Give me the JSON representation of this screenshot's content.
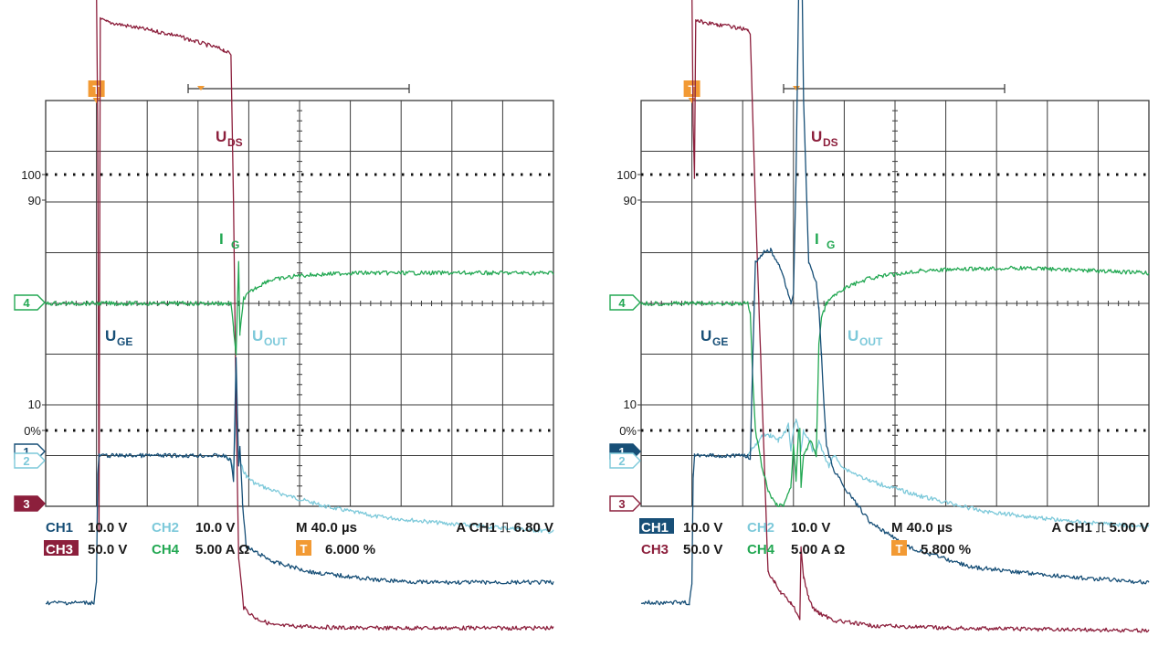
{
  "colors": {
    "ch1": "#174f77",
    "ch2": "#7dc9da",
    "ch3": "#8c1f3c",
    "ch4": "#23a853",
    "trigger": "#f29a34",
    "grid": "#3a3a3a",
    "text": "#1a1a1a"
  },
  "icons": {
    "trigger": "T"
  },
  "chart_data": [
    {
      "type": "line",
      "panel": "left",
      "x_unit": "µs",
      "xlim": [
        -40,
        360
      ],
      "trigger_x": 0,
      "ticks": {
        "y100": "100",
        "y90": "90",
        "y10": "10",
        "y0": "0%"
      },
      "labels": {
        "uds": "U",
        "uds_sub": "DS",
        "ig": "I",
        "ig_sub": "G",
        "uge": "U",
        "uge_sub": "GE",
        "uout": "U",
        "uout_sub": "OUT"
      },
      "markers": {
        "ch1": "1",
        "ch2": "2",
        "ch3": "3",
        "ch4": "4"
      },
      "readout": {
        "ch1": "CH1",
        "ch1_scale": "10.0 V",
        "ch2": "CH2",
        "ch2_scale": "10.0 V",
        "ch3": "CH3",
        "ch3_scale": "50.0 V",
        "ch4": "CH4",
        "ch4_scale": "5.00 A Ω",
        "timebase": "M 40.0 µs",
        "trigger": "A  CH1 ⎍ 6.80 V",
        "trig_pos": "6.000 %"
      },
      "series": [
        {
          "name": "UDS",
          "channel": "CH3",
          "x": [
            -40,
            -2,
            0,
            1,
            2,
            3,
            8,
            60,
            100,
            106,
            108,
            110,
            112,
            116,
            125,
            140,
            200,
            360
          ],
          "y": [
            6.3,
            6.25,
            6.2,
            3.5,
            -4.5,
            5.6,
            5.55,
            5.3,
            5.0,
            4.9,
            2.0,
            -2.0,
            -5.0,
            -6.0,
            -6.2,
            -6.35,
            -6.4,
            -6.4
          ]
        },
        {
          "name": "IG",
          "channel": "CH4",
          "x": [
            -40,
            100,
            106,
            108,
            110,
            112,
            113,
            116,
            120,
            125,
            135,
            160,
            200,
            250,
            360
          ],
          "y": [
            0,
            0,
            0,
            -0.5,
            -1.0,
            0.8,
            -0.6,
            0.1,
            0.2,
            0.3,
            0.45,
            0.55,
            0.6,
            0.6,
            0.6
          ]
        },
        {
          "name": "UGE",
          "channel": "CH1",
          "x": [
            -40,
            -2,
            0,
            1,
            2,
            100,
            106,
            108,
            110,
            112,
            113,
            115,
            118,
            125,
            140,
            170,
            220,
            260,
            360
          ],
          "y": [
            -5.9,
            -5.9,
            -5.5,
            -3.4,
            -3.0,
            -3.0,
            -3.1,
            -3.5,
            -1.1,
            -3.2,
            -2.8,
            -3.9,
            -4.8,
            -4.9,
            -5.1,
            -5.3,
            -5.45,
            -5.5,
            -5.5
          ]
        },
        {
          "name": "UOUT",
          "channel": "CH2",
          "x": [
            100,
            106,
            108,
            110,
            112,
            114,
            118,
            125,
            145,
            180,
            220,
            280,
            360
          ],
          "y": [
            -3.0,
            -3.1,
            -3.3,
            -2.1,
            -3.0,
            -3.2,
            -3.4,
            -3.55,
            -3.75,
            -4.0,
            -4.2,
            -4.35,
            -4.5
          ]
        }
      ]
    },
    {
      "type": "line",
      "panel": "right",
      "x_unit": "µs",
      "xlim": [
        -40,
        360
      ],
      "trigger_x": 0,
      "ticks": {
        "y100": "100",
        "y90": "90",
        "y10": "10",
        "y0": "0%"
      },
      "labels": {
        "uds": "U",
        "uds_sub": "DS",
        "ig": "I",
        "ig_sub": "G",
        "uge": "U",
        "uge_sub": "GE",
        "uout": "U",
        "uout_sub": "OUT"
      },
      "markers": {
        "ch1": "1",
        "ch2": "2",
        "ch3": "3",
        "ch4": "4"
      },
      "readout": {
        "ch1": "CH1",
        "ch1_scale": "10.0 V",
        "ch2": "CH2",
        "ch2_scale": "10.0 V",
        "ch3": "CH3",
        "ch3_scale": "50.0 V",
        "ch4": "CH4",
        "ch4_scale": "5.00 A Ω",
        "timebase": "M 40.0 µs",
        "trigger": "A  CH1 ⎍ 5.00 V",
        "trig_pos": "5.800 %"
      },
      "series": [
        {
          "name": "UDS",
          "channel": "CH3",
          "x": [
            -40,
            -2,
            0,
            1,
            2,
            3,
            8,
            20,
            44,
            46,
            50,
            60,
            65,
            70,
            78,
            85,
            86,
            88,
            92,
            95,
            100,
            112,
            140,
            200,
            360
          ],
          "y": [
            6.3,
            6.25,
            6.2,
            3.5,
            2.5,
            5.6,
            5.55,
            5.5,
            5.4,
            5.3,
            2.0,
            -5.3,
            -5.5,
            -5.7,
            -5.9,
            -6.2,
            -4.8,
            -5.4,
            -5.8,
            -6.0,
            -6.1,
            -6.25,
            -6.35,
            -6.4,
            -6.45
          ]
        },
        {
          "name": "IG",
          "channel": "CH4",
          "x": [
            -40,
            44,
            46,
            48,
            50,
            55,
            60,
            66,
            72,
            78,
            80,
            82,
            84,
            85,
            86,
            88,
            90,
            94,
            98,
            100,
            102,
            106,
            112,
            120,
            140,
            180,
            260,
            360
          ],
          "y": [
            0,
            0,
            -0.2,
            -1.5,
            -2.5,
            -3.2,
            -3.7,
            -3.95,
            -4.0,
            -3.6,
            -2.8,
            -3.5,
            -2.5,
            -2.5,
            -3.6,
            -3.0,
            -2.9,
            -2.7,
            -3.0,
            -0.8,
            -0.3,
            0,
            0.15,
            0.3,
            0.5,
            0.65,
            0.7,
            0.6
          ]
        },
        {
          "name": "UGE",
          "channel": "CH1",
          "x": [
            -40,
            -2,
            0,
            1,
            2,
            44,
            46,
            47,
            50,
            56,
            62,
            68,
            72,
            76,
            78,
            80,
            82,
            84,
            86,
            88,
            92,
            95,
            98,
            100,
            102,
            104,
            106,
            108,
            112,
            125,
            140,
            170,
            220,
            300,
            360
          ],
          "y": [
            -5.9,
            -5.9,
            -5.5,
            -3.4,
            -3.0,
            -3.0,
            -3.1,
            -2.0,
            0.8,
            1.0,
            1.05,
            0.8,
            0.5,
            0.2,
            0.0,
            0.2,
            2.5,
            6.0,
            8.0,
            4.0,
            0.8,
            0.6,
            0.4,
            -0.1,
            -1.0,
            -2.0,
            -2.8,
            -3.0,
            -3.3,
            -3.8,
            -4.3,
            -4.8,
            -5.2,
            -5.4,
            -5.5
          ]
        },
        {
          "name": "UOUT",
          "channel": "CH2",
          "x": [
            44,
            50,
            56,
            62,
            68,
            72,
            76,
            78,
            80,
            82,
            84,
            86,
            88,
            92,
            95,
            98,
            100,
            104,
            108,
            112,
            120,
            140,
            180,
            230,
            300,
            360
          ],
          "y": [
            -3.0,
            -2.8,
            -2.6,
            -2.6,
            -2.7,
            -2.6,
            -2.4,
            -2.9,
            -2.5,
            -2.3,
            -2.5,
            -2.9,
            -2.5,
            -2.7,
            -2.9,
            -2.9,
            -2.7,
            -3.0,
            -3.2,
            -3.0,
            -3.25,
            -3.5,
            -3.8,
            -4.1,
            -4.3,
            -4.4
          ]
        }
      ]
    }
  ]
}
